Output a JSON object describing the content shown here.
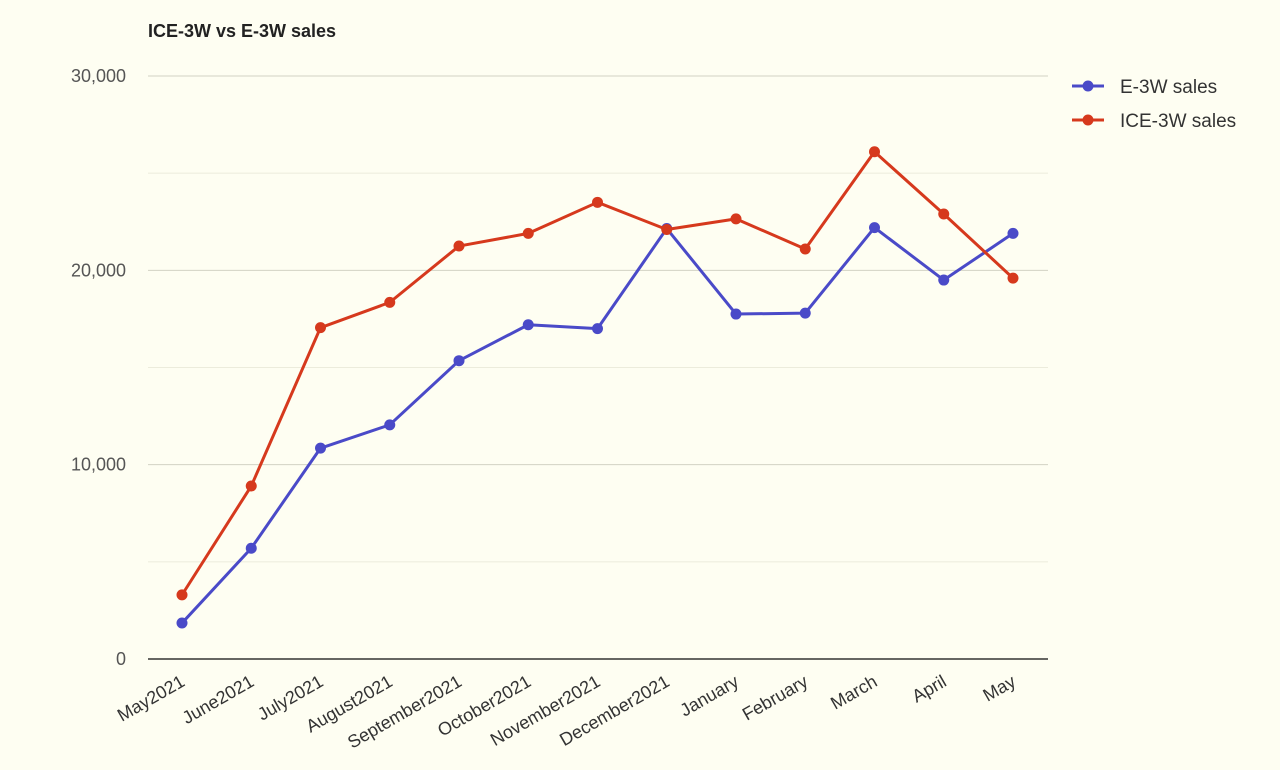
{
  "chart_data": {
    "type": "line",
    "title": "ICE-3W vs E-3W sales",
    "xlabel": "",
    "ylabel": "",
    "categories": [
      "May2021",
      "June2021",
      "July2021",
      "August2021",
      "September2021",
      "October2021",
      "November2021",
      "December2021",
      "January",
      "February",
      "March",
      "April",
      "May"
    ],
    "y_ticks": [
      0,
      10000,
      20000,
      30000
    ],
    "y_tick_labels": [
      "0",
      "10,000",
      "20,000",
      "30,000"
    ],
    "ylim": [
      0,
      30000
    ],
    "grid": true,
    "minor_grid": true,
    "legend_position": "top-right",
    "series": [
      {
        "name": "E-3W sales",
        "color": "#4a4ac8",
        "values": [
          1850,
          5700,
          10850,
          12050,
          15350,
          17200,
          17000,
          22150,
          17750,
          17800,
          22200,
          19500,
          21900
        ]
      },
      {
        "name": "ICE-3W sales",
        "color": "#d6391d",
        "values": [
          3300,
          8900,
          17050,
          18350,
          21250,
          21900,
          23500,
          22100,
          22650,
          21100,
          26100,
          22900,
          19600
        ]
      }
    ]
  }
}
